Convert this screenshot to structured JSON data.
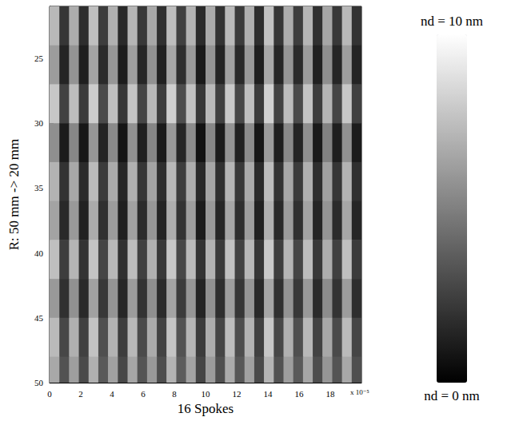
{
  "chart_data": {
    "type": "heatmap",
    "x_label": "16 Spokes",
    "y_label": "R: 50 mm -> 20 mm",
    "annotations": [
      "x 10⁻⁵"
    ],
    "xlim": [
      0,
      20
    ],
    "xticks": [
      0,
      2,
      4,
      6,
      8,
      10,
      12,
      14,
      16,
      18
    ],
    "ylim": [
      50,
      21
    ],
    "yticks": [
      25,
      30,
      35,
      40,
      45,
      50
    ],
    "color": [
      "#000000",
      "#ffffff"
    ],
    "colorbar": {
      "range": [
        0,
        10
      ],
      "top_label": "nd = 10 nm",
      "bottom_label": "nd = 0 nm"
    },
    "x_edges": [
      0,
      0.625,
      1.25,
      1.875,
      2.5,
      3.125,
      3.75,
      4.375,
      5,
      5.625,
      6.25,
      6.875,
      7.5,
      8.125,
      8.75,
      9.375,
      10,
      10.625,
      11.25,
      11.875,
      12.5,
      13.125,
      13.75,
      14.375,
      15,
      15.625,
      16.25,
      16.875,
      17.5,
      18.125,
      18.75,
      19.375,
      20
    ],
    "y_edges": [
      21,
      24,
      27,
      30,
      33,
      36,
      39,
      42,
      45,
      48,
      50
    ],
    "cells": [
      [
        7.2,
        2.1,
        6.8,
        1.8,
        7.5,
        2.4,
        6.9,
        1.6,
        7.1,
        2.2,
        6.6,
        1.9,
        7.4,
        2.5,
        7.0,
        1.7,
        6.7,
        2.0,
        7.3,
        2.3,
        6.9,
        1.8,
        7.6,
        2.1,
        6.8,
        2.4,
        7.1,
        1.9,
        6.5,
        2.2,
        7.2,
        2.0
      ],
      [
        6.1,
        1.4,
        5.8,
        1.2,
        6.4,
        1.7,
        5.9,
        1.1,
        6.2,
        1.5,
        5.7,
        1.3,
        6.5,
        1.8,
        6.0,
        1.0,
        5.8,
        1.4,
        6.3,
        1.6,
        6.0,
        1.2,
        6.6,
        1.5,
        5.9,
        1.7,
        6.1,
        1.3,
        5.6,
        1.5,
        6.2,
        1.4
      ],
      [
        7.8,
        2.6,
        7.4,
        2.3,
        8.0,
        2.9,
        7.5,
        2.1,
        7.7,
        2.7,
        7.2,
        2.4,
        8.1,
        3.0,
        7.6,
        2.2,
        7.3,
        2.5,
        7.9,
        2.8,
        7.5,
        2.3,
        8.2,
        2.6,
        7.4,
        2.9,
        7.7,
        2.4,
        7.1,
        2.7,
        7.8,
        2.5
      ],
      [
        5.6,
        1.1,
        5.3,
        0.9,
        5.9,
        1.4,
        5.4,
        0.8,
        5.7,
        1.2,
        5.2,
        1.0,
        6.0,
        1.5,
        5.5,
        0.7,
        5.3,
        1.1,
        5.8,
        1.3,
        5.5,
        0.9,
        6.1,
        1.2,
        5.4,
        1.4,
        5.6,
        1.0,
        5.1,
        1.2,
        5.7,
        1.1
      ],
      [
        7.0,
        2.0,
        6.6,
        1.7,
        7.3,
        2.3,
        6.7,
        1.5,
        6.9,
        2.1,
        6.4,
        1.8,
        7.2,
        2.4,
        6.8,
        1.6,
        6.5,
        1.9,
        7.1,
        2.2,
        6.7,
        1.7,
        7.4,
        2.0,
        6.6,
        2.3,
        6.9,
        1.8,
        6.3,
        2.1,
        7.0,
        1.9
      ],
      [
        6.4,
        1.6,
        6.0,
        1.3,
        6.7,
        1.9,
        6.1,
        1.2,
        6.3,
        1.7,
        5.9,
        1.4,
        6.8,
        2.0,
        6.2,
        1.1,
        6.0,
        1.5,
        6.5,
        1.8,
        6.2,
        1.3,
        6.9,
        1.6,
        6.1,
        1.9,
        6.4,
        1.4,
        5.8,
        1.7,
        6.5,
        1.5
      ],
      [
        7.5,
        2.4,
        7.1,
        2.0,
        7.7,
        2.7,
        7.2,
        1.9,
        7.4,
        2.5,
        6.9,
        2.2,
        7.8,
        2.8,
        7.3,
        2.0,
        7.0,
        2.3,
        7.6,
        2.6,
        7.2,
        2.1,
        7.9,
        2.4,
        7.1,
        2.7,
        7.4,
        2.2,
        6.8,
        2.5,
        7.5,
        2.3
      ],
      [
        6.0,
        1.9,
        5.7,
        1.6,
        6.3,
        2.2,
        5.8,
        1.5,
        6.1,
        2.0,
        5.6,
        1.7,
        6.4,
        2.3,
        5.9,
        1.4,
        5.7,
        1.8,
        6.2,
        2.1,
        5.9,
        1.6,
        6.5,
        1.9,
        5.8,
        2.2,
        6.0,
        1.7,
        5.5,
        2.0,
        6.1,
        1.8
      ],
      [
        7.3,
        2.8,
        6.9,
        2.5,
        7.6,
        3.1,
        7.0,
        2.4,
        7.2,
        2.9,
        6.7,
        2.6,
        7.7,
        3.2,
        7.1,
        2.3,
        6.8,
        2.7,
        7.4,
        3.0,
        7.0,
        2.5,
        7.8,
        2.8,
        6.9,
        3.1,
        7.2,
        2.6,
        6.6,
        2.9,
        7.3,
        2.7
      ],
      [
        6.6,
        3.2,
        6.2,
        2.9,
        6.9,
        3.5,
        6.3,
        2.8,
        6.5,
        3.3,
        6.0,
        3.0,
        7.0,
        3.6,
        6.4,
        2.7,
        6.1,
        3.1,
        6.7,
        3.4,
        6.3,
        2.9,
        7.1,
        3.2,
        6.2,
        3.5,
        6.5,
        3.0,
        5.9,
        3.3,
        6.6,
        3.1
      ]
    ]
  }
}
